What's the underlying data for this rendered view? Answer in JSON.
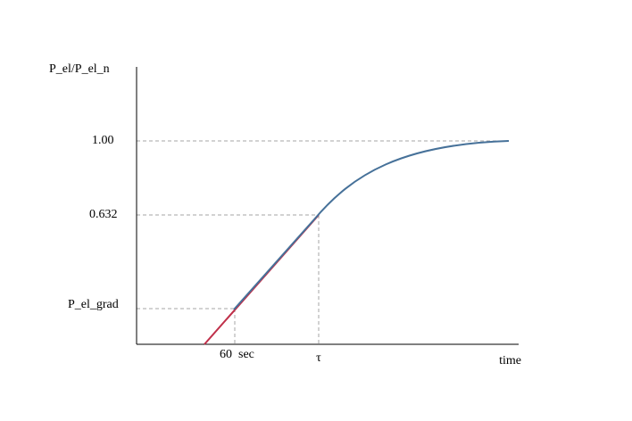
{
  "axes": {
    "y_label": "P_el/P_el_n",
    "x_label": "time"
  },
  "y_markers": [
    "1.00",
    "0.632",
    "P_el_grad"
  ],
  "x_markers": [
    "60  sec",
    "τ"
  ]
}
